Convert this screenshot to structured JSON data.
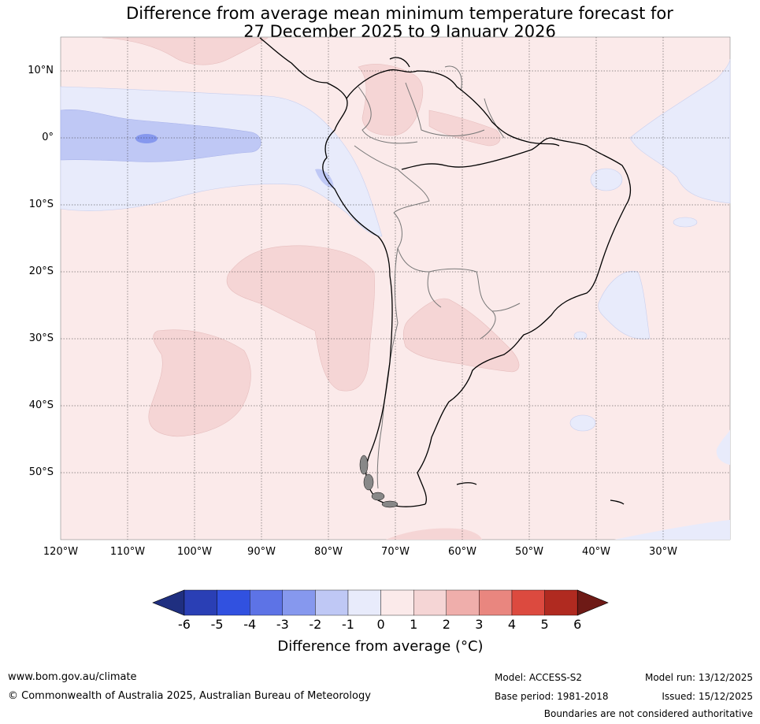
{
  "title_line1": "Difference from average mean minimum temperature forecast for",
  "title_line2": "27 December 2025 to 9 January 2026",
  "lat_labels": [
    "10°N",
    "0°",
    "10°S",
    "20°S",
    "30°S",
    "40°S",
    "50°S"
  ],
  "lon_labels": [
    "120°W",
    "110°W",
    "100°W",
    "90°W",
    "80°W",
    "70°W",
    "60°W",
    "50°W",
    "40°W",
    "30°W"
  ],
  "colorbar": {
    "ticks": [
      "-6",
      "-5",
      "-4",
      "-3",
      "-2",
      "-1",
      "0",
      "1",
      "2",
      "3",
      "4",
      "5",
      "6"
    ],
    "colors": [
      "#1f2f80",
      "#2a3fb5",
      "#3151e0",
      "#5d73e6",
      "#8698ee",
      "#bfc8f5",
      "#e8ebfb",
      "#fbeaea",
      "#f5d5d5",
      "#efaeab",
      "#e9867f",
      "#dc4a3f",
      "#b02a20",
      "#6e1a16"
    ],
    "label": "Difference from average (°C)"
  },
  "colors": {
    "base_warm": "#fbeaea",
    "warm_1_2": "#f5d5d5",
    "cool_0_1": "#e8ebfb",
    "cool_1_2": "#bfc8f5",
    "cool_2_3": "#8698ee"
  },
  "footer": {
    "website": "www.bom.gov.au/climate",
    "copyright": "© Commonwealth of Australia 2025, Australian Bureau of Meteorology",
    "model": "Model: ACCESS-S2",
    "base_period": "Base period: 1981-2018",
    "model_run": "Model run: 13/12/2025",
    "issued": "Issued: 15/12/2025",
    "disclaimer": "Boundaries are not considered authoritative"
  }
}
